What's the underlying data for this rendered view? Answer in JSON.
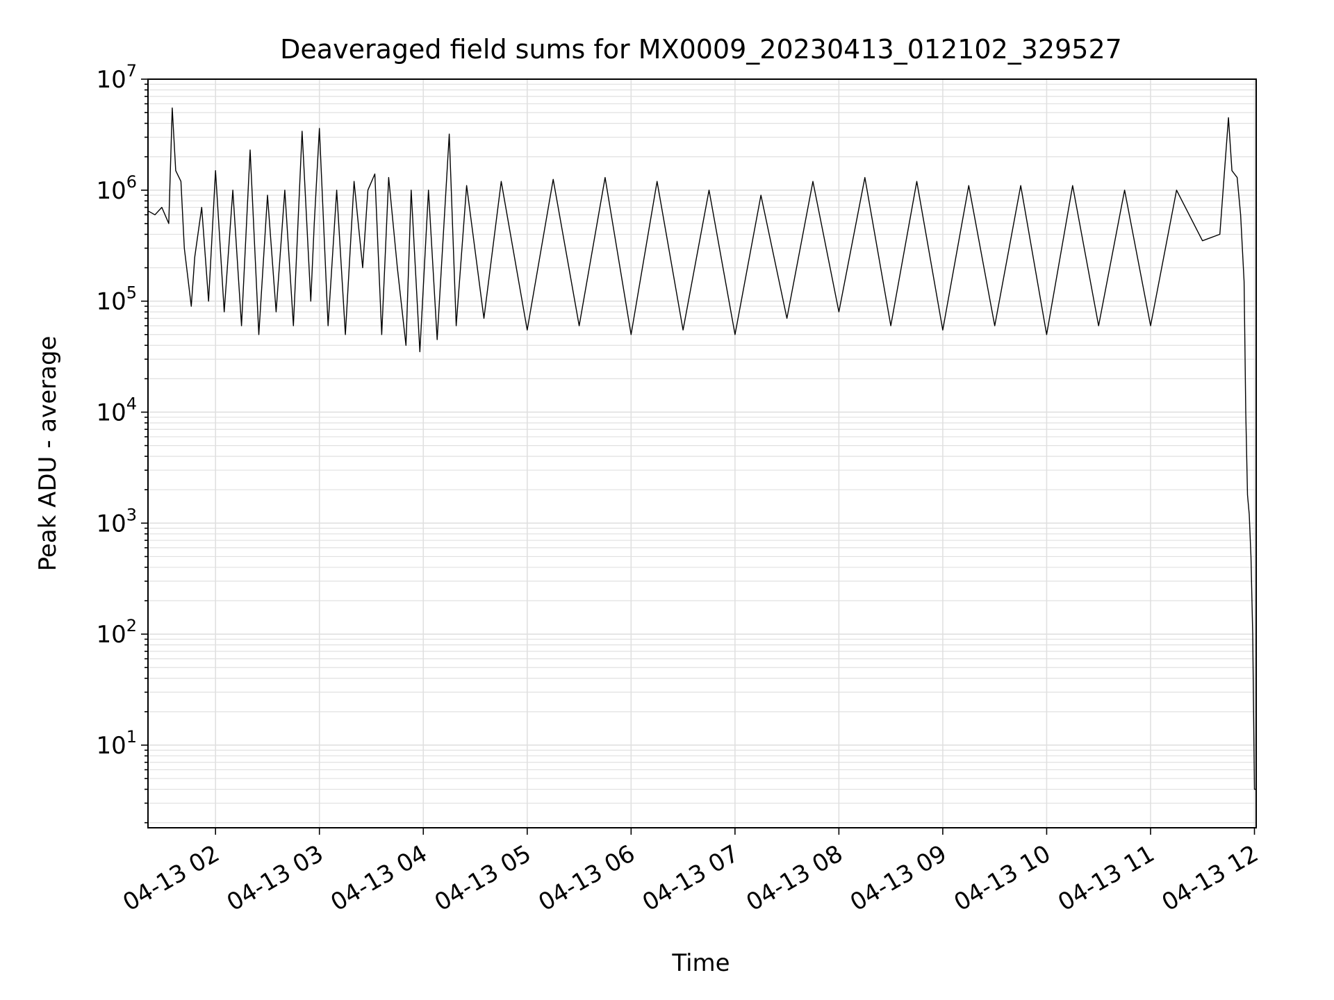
{
  "chart_data": {
    "type": "line",
    "title": "Deaveraged field sums for MX0009_20230413_012102_329527",
    "xlabel": "Time",
    "ylabel": "Peak ADU - average",
    "yscale": "log",
    "ylim": [
      1.8,
      10000000
    ],
    "xlim": [
      "2023-04-13 01:21",
      "2023-04-13 12:01"
    ],
    "grid": true,
    "legend": "none",
    "line_color": "#000000",
    "grid_color": "#e0e0e0",
    "x_ticks": [
      "04-13 02",
      "04-13 03",
      "04-13 04",
      "04-13 05",
      "04-13 06",
      "04-13 07",
      "04-13 08",
      "04-13 09",
      "04-13 10",
      "04-13 11",
      "04-13 12"
    ],
    "y_ticks": [
      {
        "value": 10,
        "base": "10",
        "exp": "1"
      },
      {
        "value": 100,
        "base": "10",
        "exp": "2"
      },
      {
        "value": 1000,
        "base": "10",
        "exp": "3"
      },
      {
        "value": 10000,
        "base": "10",
        "exp": "4"
      },
      {
        "value": 100000,
        "base": "10",
        "exp": "5"
      },
      {
        "value": 1000000,
        "base": "10",
        "exp": "6"
      },
      {
        "value": 10000000,
        "base": "10",
        "exp": "7"
      }
    ],
    "series": [
      {
        "x": [
          "2023-04-13 01:21",
          "2023-04-13 01:25",
          "2023-04-13 01:29",
          "2023-04-13 01:33",
          "2023-04-13 01:35",
          "2023-04-13 01:37",
          "2023-04-13 01:40",
          "2023-04-13 01:42",
          "2023-04-13 01:46",
          "2023-04-13 01:48",
          "2023-04-13 01:52",
          "2023-04-13 01:56",
          "2023-04-13 02:00",
          "2023-04-13 02:05",
          "2023-04-13 02:10",
          "2023-04-13 02:15",
          "2023-04-13 02:20",
          "2023-04-13 02:25",
          "2023-04-13 02:30",
          "2023-04-13 02:35",
          "2023-04-13 02:40",
          "2023-04-13 02:45",
          "2023-04-13 02:50",
          "2023-04-13 02:55",
          "2023-04-13 02:57",
          "2023-04-13 03:00",
          "2023-04-13 03:05",
          "2023-04-13 03:10",
          "2023-04-13 03:15",
          "2023-04-13 03:20",
          "2023-04-13 03:25",
          "2023-04-13 03:28",
          "2023-04-13 03:32",
          "2023-04-13 03:36",
          "2023-04-13 03:40",
          "2023-04-13 03:45",
          "2023-04-13 03:50",
          "2023-04-13 03:53",
          "2023-04-13 03:58",
          "2023-04-13 04:03",
          "2023-04-13 04:08",
          "2023-04-13 04:15",
          "2023-04-13 04:19",
          "2023-04-13 04:25",
          "2023-04-13 04:35",
          "2023-04-13 04:45",
          "2023-04-13 05:00",
          "2023-04-13 05:15",
          "2023-04-13 05:30",
          "2023-04-13 05:45",
          "2023-04-13 06:00",
          "2023-04-13 06:15",
          "2023-04-13 06:30",
          "2023-04-13 06:45",
          "2023-04-13 07:00",
          "2023-04-13 07:15",
          "2023-04-13 07:30",
          "2023-04-13 07:45",
          "2023-04-13 08:00",
          "2023-04-13 08:15",
          "2023-04-13 08:30",
          "2023-04-13 08:45",
          "2023-04-13 09:00",
          "2023-04-13 09:15",
          "2023-04-13 09:30",
          "2023-04-13 09:45",
          "2023-04-13 10:00",
          "2023-04-13 10:15",
          "2023-04-13 10:30",
          "2023-04-13 10:45",
          "2023-04-13 11:00",
          "2023-04-13 11:15",
          "2023-04-13 11:30",
          "2023-04-13 11:40",
          "2023-04-13 11:45",
          "2023-04-13 11:47",
          "2023-04-13 11:50",
          "2023-04-13 11:52",
          "2023-04-13 11:54",
          "2023-04-13 11:55",
          "2023-04-13 11:56",
          "2023-04-13 11:57",
          "2023-04-13 11:58",
          "2023-04-13 11:59",
          "2023-04-13 12:00",
          "2023-04-13 12:01"
        ],
        "y": [
          650000,
          600000,
          700000,
          500000,
          5500000,
          1500000,
          1200000,
          300000,
          90000,
          250000,
          700000,
          100000,
          1500000,
          80000,
          1000000,
          60000,
          2300000,
          50000,
          900000,
          80000,
          1000000,
          60000,
          3400000,
          100000,
          500000,
          3600000,
          60000,
          1000000,
          50000,
          1200000,
          200000,
          1000000,
          1400000,
          50000,
          1300000,
          200000,
          40000,
          1000000,
          35000,
          1000000,
          45000,
          3200000,
          60000,
          1100000,
          70000,
          1200000,
          55000,
          1250000,
          60000,
          1300000,
          50000,
          1200000,
          55000,
          1000000,
          50000,
          900000,
          70000,
          1200000,
          80000,
          1300000,
          60000,
          1200000,
          55000,
          1100000,
          60000,
          1100000,
          50000,
          1100000,
          60000,
          1000000,
          60000,
          1000000,
          350000,
          400000,
          4500000,
          1500000,
          1300000,
          600000,
          150000,
          10000,
          1800,
          1200,
          500,
          100,
          4,
          4
        ]
      }
    ]
  }
}
